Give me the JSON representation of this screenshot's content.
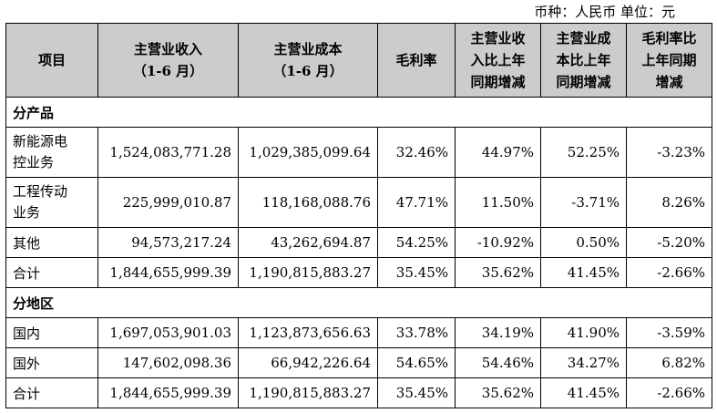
{
  "unit_note": "币种：人民币 单位：元",
  "headers": [
    [
      "项目"
    ],
    [
      "主营业收入",
      "（1-6 月）"
    ],
    [
      "主营业成本",
      "（1-6 月）"
    ],
    [
      "毛利率"
    ],
    [
      "主营业收",
      "入比上年",
      "同期增减"
    ],
    [
      "主营业成",
      "本比上年",
      "同期增减"
    ],
    [
      "毛利率比",
      "上年同期",
      "增减"
    ]
  ],
  "sections": [
    {
      "title": "分产品",
      "rows": [
        {
          "label": [
            "新能源电",
            "控业务"
          ],
          "cells": [
            "1,524,083,771.28",
            "1,029,385,099.64",
            "32.46%",
            "44.97%",
            "52.25%",
            "-3.23%"
          ]
        },
        {
          "label": [
            "工程传动",
            "业务"
          ],
          "cells": [
            "225,999,010.87",
            "118,168,088.76",
            "47.71%",
            "11.50%",
            "-3.71%",
            "8.26%"
          ]
        },
        {
          "label": [
            "其他"
          ],
          "cells": [
            "94,573,217.24",
            "43,262,694.87",
            "54.25%",
            "-10.92%",
            "0.50%",
            "-5.20%"
          ]
        },
        {
          "label": [
            "合计"
          ],
          "cells": [
            "1,844,655,999.39",
            "1,190,815,883.27",
            "35.45%",
            "35.62%",
            "41.45%",
            "-2.66%"
          ]
        }
      ]
    },
    {
      "title": "分地区",
      "rows": [
        {
          "label": [
            "国内"
          ],
          "cells": [
            "1,697,053,901.03",
            "1,123,873,656.63",
            "33.78%",
            "34.19%",
            "41.90%",
            "-3.59%"
          ]
        },
        {
          "label": [
            "国外"
          ],
          "cells": [
            "147,602,098.36",
            "66,942,226.64",
            "54.65%",
            "54.46%",
            "34.27%",
            "6.82%"
          ]
        },
        {
          "label": [
            "合计"
          ],
          "cells": [
            "1,844,655,999.39",
            "1,190,815,883.27",
            "35.45%",
            "35.62%",
            "41.45%",
            "-2.66%"
          ]
        }
      ]
    }
  ]
}
